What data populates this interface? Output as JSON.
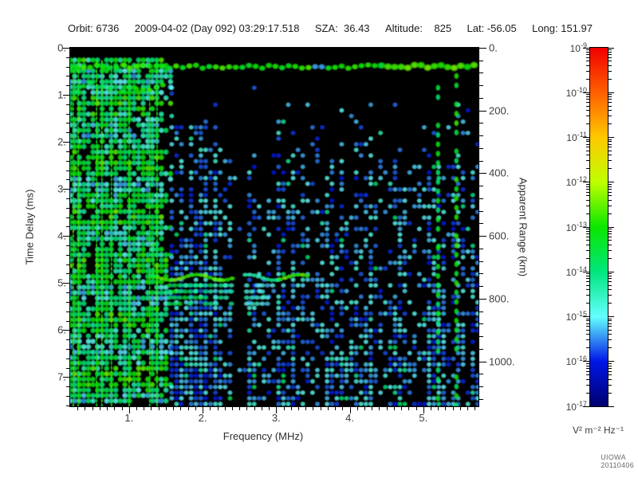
{
  "header": {
    "orbit": "Orbit: 6736",
    "datetime": "2009-04-02 (Day 092) 03:29:17.518",
    "sza": "SZA:  36.43",
    "altitude": "Altitude:    825",
    "lat": "Lat: -56.05",
    "long": "Long: 151.97"
  },
  "credit": "UIOWA 20110406",
  "chart_data": {
    "type": "heatmap",
    "description": "Radar sounder ionogram spectrogram: spectral density vs frequency and time delay",
    "xlabel": "Frequency (MHz)",
    "ylabel_left": "Time Delay (ms)",
    "ylabel_right": "Apparent Range (km)",
    "colorbar_unit": "V² m⁻² Hz⁻¹",
    "x_mhz_min": 0.2,
    "x_mhz_max": 5.75,
    "x_major_ticks": [
      1,
      2,
      3,
      4,
      5
    ],
    "x_minor_step_mhz": 0.1,
    "t_ms_min": 0,
    "t_ms_max": 7.62,
    "t_major_step_ms": 1,
    "t_minor_step_ms": 0.2,
    "range_km_per_ms": 150,
    "range_major_step_km": 200,
    "range_minor_step_km": 40,
    "range_major_labels_km": [
      0,
      200,
      400,
      600,
      800,
      1000
    ],
    "colorbar_exponents": [
      -9,
      -10,
      -11,
      -12,
      -13,
      -14,
      -15,
      -16,
      -17
    ],
    "colormap_stops": [
      [
        0.0,
        "#00006e"
      ],
      [
        0.125,
        "#0016e6"
      ],
      [
        0.25,
        "#64ffff"
      ],
      [
        0.375,
        "#00e67d"
      ],
      [
        0.5,
        "#0ce600"
      ],
      [
        0.625,
        "#bfff00"
      ],
      [
        0.75,
        "#ffc800"
      ],
      [
        0.875,
        "#ff5f00"
      ],
      [
        1.0,
        "#f00000"
      ]
    ],
    "grid": false,
    "background": "#000000",
    "seed": 987654,
    "features": {
      "surface_echo": {
        "t_ms": 0.4,
        "f_min": 0.2,
        "f_max": 5.75,
        "level": 0.48
      },
      "left_band": {
        "f_min": 0.2,
        "f_max": 1.62,
        "t_min": 0.26,
        "level": 0.34,
        "density": 0.8,
        "row_period_ms": 1.15
      },
      "harmonic_lines_mhz": [
        0.24,
        0.31,
        0.56,
        0.63,
        0.76,
        1.0,
        1.28,
        1.38
      ],
      "harmonic_level": 0.55,
      "echo_trace": {
        "t_ms": 4.88,
        "f_min": 1.32,
        "f_max": 3.45,
        "level": 0.5,
        "bright_f": [
          [
            1.33,
            2.42
          ],
          [
            3.02,
            3.45
          ]
        ]
      },
      "echo_band2": {
        "t_min": 5.05,
        "t_max": 5.55,
        "f_min": 1.55,
        "f_max": 3.0,
        "level": 0.38
      },
      "quiet_gap": {
        "f_min": 2.42,
        "f_max": 2.58
      },
      "bright_columns": [
        {
          "f": 5.2,
          "t_min": 0.85,
          "level": 0.36
        },
        {
          "f": 5.45,
          "t_min": 0.6,
          "level": 0.4
        }
      ],
      "speckle": {
        "f_min": 1.58,
        "t_min": 0.85,
        "density_top": 0.14,
        "density_bottom": 0.62
      }
    }
  }
}
